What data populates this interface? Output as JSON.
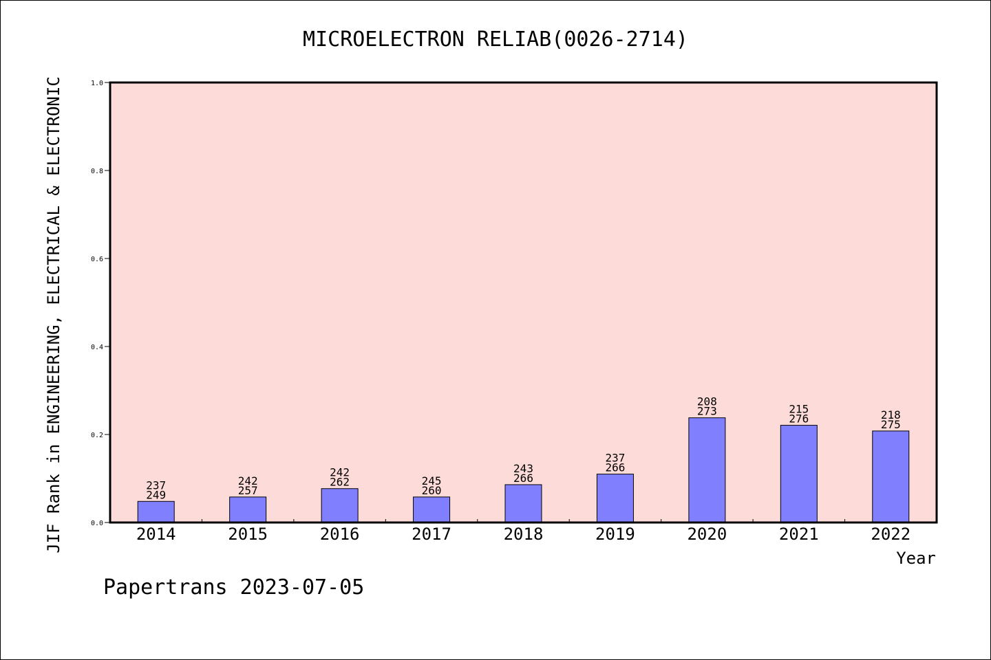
{
  "chart_data": {
    "type": "bar",
    "title": "MICROELECTRON RELIAB(0026-2714)",
    "ylabel": "JIF Rank in ENGINEERING, ELECTRICAL & ELECTRONIC",
    "xlabel": "Year",
    "ylim": [
      0,
      1.0
    ],
    "yticks": [
      "0.0",
      "0.2",
      "0.4",
      "0.6",
      "0.8",
      "1.0"
    ],
    "categories": [
      "2014",
      "2015",
      "2016",
      "2017",
      "2018",
      "2019",
      "2020",
      "2021",
      "2022"
    ],
    "values": [
      0.048,
      0.058,
      0.077,
      0.058,
      0.086,
      0.11,
      0.238,
      0.221,
      0.208
    ],
    "labels_top": [
      "237",
      "242",
      "242",
      "245",
      "243",
      "237",
      "208",
      "215",
      "218"
    ],
    "labels_bottom": [
      "249",
      "257",
      "262",
      "260",
      "266",
      "266",
      "273",
      "276",
      "275"
    ],
    "legend": "none",
    "grid": false
  },
  "colors": {
    "plot_background": "#fddbd8",
    "bar_fill": "#8080ff",
    "bar_stroke": "#000000"
  },
  "footer": "Papertrans 2023-07-05"
}
